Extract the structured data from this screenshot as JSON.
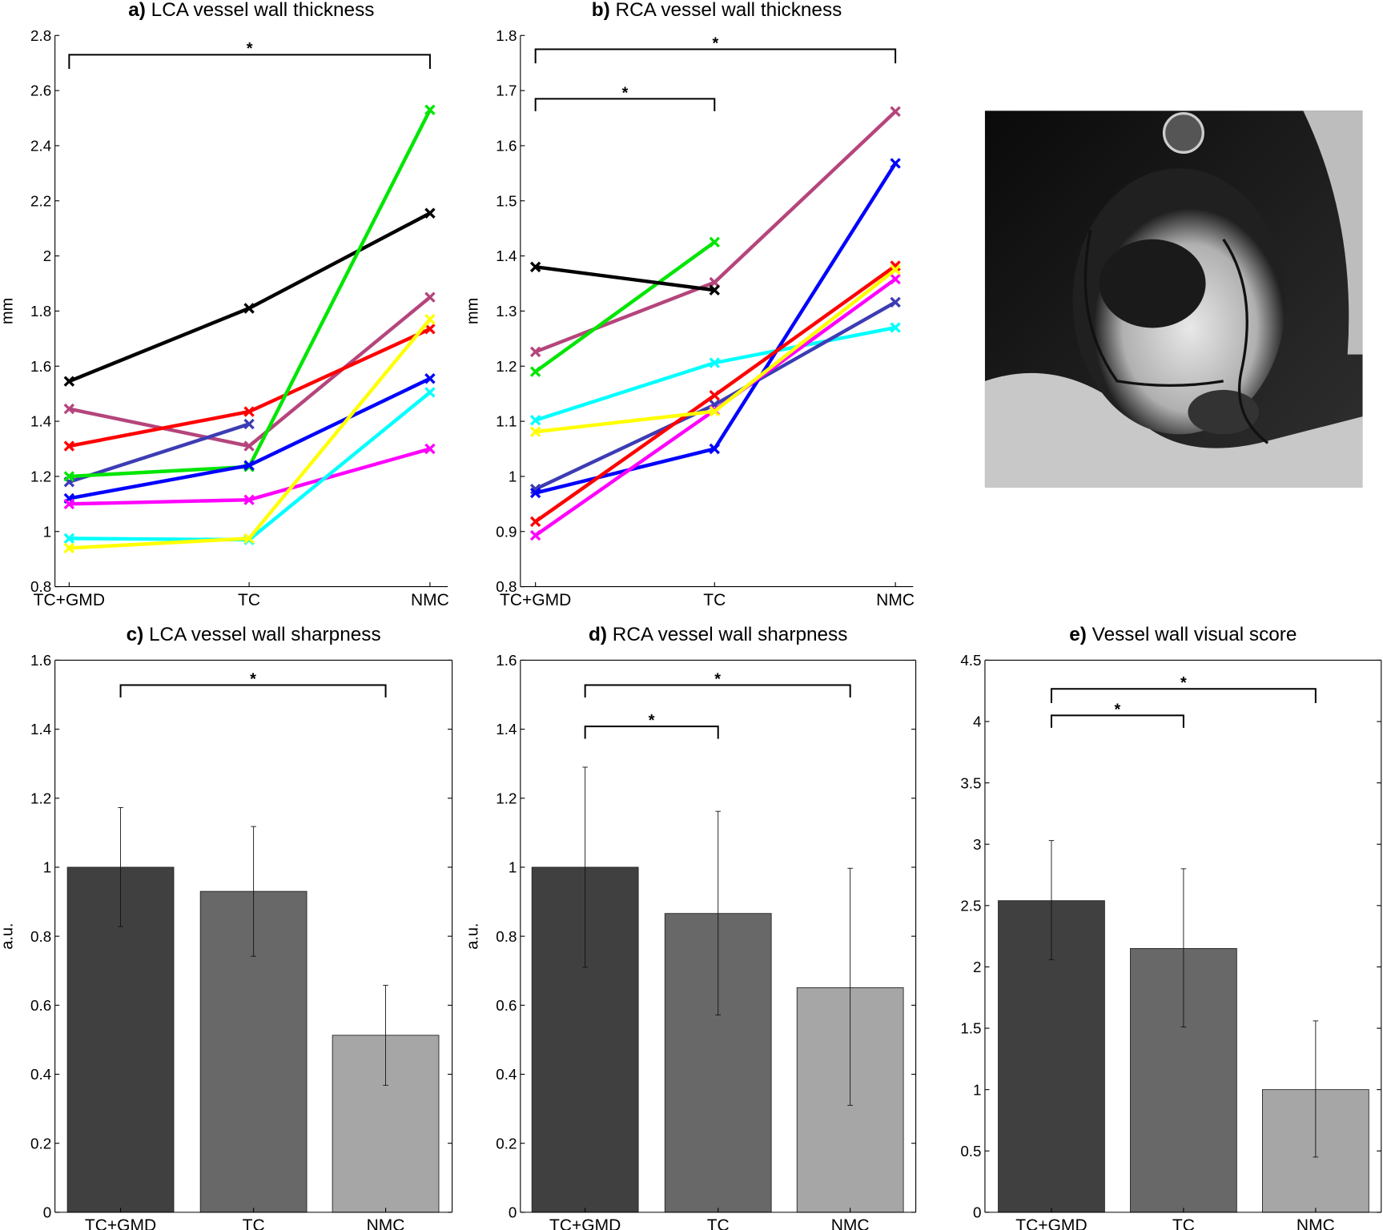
{
  "chart_data": [
    {
      "id": "a",
      "type": "line",
      "title_prefix": "a)",
      "title": "LCA vessel wall thickness",
      "ylabel": "mm",
      "xlabel": "",
      "categories": [
        "TC+GMD",
        "TC",
        "NMC"
      ],
      "ylim": [
        0.8,
        2.8
      ],
      "yticks": [
        0.8,
        1,
        1.2,
        1.4,
        1.6,
        1.8,
        2,
        2.2,
        2.4,
        2.6,
        2.8
      ],
      "ytick_labels": [
        "0.8",
        "1",
        "1.2",
        "1.4",
        "1.6",
        "1.8",
        "2",
        "2.2",
        "2.4",
        "2.6",
        "2.8"
      ],
      "series": [
        {
          "color": "#000000",
          "values": [
            1.545,
            1.81,
            2.155
          ]
        },
        {
          "color": "#b5457c",
          "values": [
            1.445,
            1.31,
            1.85
          ]
        },
        {
          "color": "#ff0000",
          "values": [
            1.31,
            1.435,
            1.735
          ]
        },
        {
          "color": "#3c3cb4",
          "values": [
            1.18,
            1.39,
            null
          ]
        },
        {
          "color": "#00e600",
          "values": [
            1.2,
            1.235,
            2.53
          ]
        },
        {
          "color": "#0000ff",
          "values": [
            1.12,
            1.24,
            1.555
          ]
        },
        {
          "color": "#ff00ff",
          "values": [
            1.1,
            1.115,
            1.3
          ]
        },
        {
          "color": "#00ffff",
          "values": [
            0.975,
            0.97,
            1.505
          ]
        },
        {
          "color": "#ffff00",
          "values": [
            0.94,
            0.975,
            1.77
          ]
        }
      ],
      "significance": [
        {
          "from": 0,
          "to": 2,
          "label": "*"
        }
      ]
    },
    {
      "id": "b",
      "type": "line",
      "title_prefix": "b)",
      "title": "RCA vessel wall thickness",
      "ylabel": "mm",
      "xlabel": "",
      "categories": [
        "TC+GMD",
        "TC",
        "NMC"
      ],
      "ylim": [
        0.8,
        1.8
      ],
      "yticks": [
        0.8,
        0.9,
        1,
        1.1,
        1.2,
        1.3,
        1.4,
        1.5,
        1.6,
        1.7,
        1.8
      ],
      "ytick_labels": [
        "0.8",
        "0.9",
        "1",
        "1.1",
        "1.2",
        "1.3",
        "1.4",
        "1.5",
        "1.6",
        "1.7",
        "1.8"
      ],
      "series": [
        {
          "color": "#b5457c",
          "values": [
            1.226,
            1.352,
            1.662
          ]
        },
        {
          "color": "#00ffff",
          "values": [
            1.102,
            1.206,
            1.27
          ]
        },
        {
          "color": "#3c3cb4",
          "values": [
            0.977,
            1.13,
            1.316
          ]
        },
        {
          "color": "#0000ff",
          "values": [
            0.97,
            1.05,
            1.568
          ]
        },
        {
          "color": "#ff00ff",
          "values": [
            0.893,
            1.12,
            1.358
          ]
        },
        {
          "color": "#ff0000",
          "values": [
            0.918,
            1.147,
            1.382
          ]
        },
        {
          "color": "#ffff00",
          "values": [
            1.081,
            1.118,
            1.375
          ]
        },
        {
          "color": "#00e600",
          "values": [
            1.19,
            1.425,
            null
          ]
        },
        {
          "color": "#000000",
          "values": [
            1.38,
            1.338,
            null
          ]
        }
      ],
      "significance": [
        {
          "from": 0,
          "to": 2,
          "label": "*"
        },
        {
          "from": 0,
          "to": 1,
          "label": "*"
        }
      ]
    },
    {
      "id": "c",
      "type": "bar",
      "title_prefix": "c)",
      "title": "LCA vessel wall sharpness",
      "ylabel": "a.u.",
      "xlabel": "",
      "categories": [
        "TC+GMD",
        "TC",
        "NMC"
      ],
      "values": [
        1.0,
        0.93,
        0.513
      ],
      "error_upper": [
        1.173,
        1.118,
        0.658
      ],
      "error_lower": [
        0.828,
        0.742,
        0.368
      ],
      "bar_colors": [
        "#404040",
        "#686868",
        "#a6a6a6"
      ],
      "ylim": [
        0,
        1.6
      ],
      "yticks": [
        0,
        0.2,
        0.4,
        0.6,
        0.8,
        1,
        1.2,
        1.4,
        1.6
      ],
      "ytick_labels": [
        "0",
        "0.2",
        "0.4",
        "0.6",
        "0.8",
        "1",
        "1.2",
        "1.4",
        "1.6"
      ],
      "significance": [
        {
          "from": 0,
          "to": 2,
          "label": "*"
        }
      ]
    },
    {
      "id": "d",
      "type": "bar",
      "title_prefix": "d)",
      "title": "RCA vessel wall sharpness",
      "ylabel": "a.u.",
      "xlabel": "",
      "categories": [
        "TC+GMD",
        "TC",
        "NMC"
      ],
      "values": [
        1.0,
        0.866,
        0.651
      ],
      "error_upper": [
        1.29,
        1.162,
        0.997
      ],
      "error_lower": [
        0.71,
        0.572,
        0.31
      ],
      "bar_colors": [
        "#404040",
        "#686868",
        "#a6a6a6"
      ],
      "ylim": [
        0,
        1.6
      ],
      "yticks": [
        0,
        0.2,
        0.4,
        0.6,
        0.8,
        1,
        1.2,
        1.4,
        1.6
      ],
      "ytick_labels": [
        "0",
        "0.2",
        "0.4",
        "0.6",
        "0.8",
        "1",
        "1.2",
        "1.4",
        "1.6"
      ],
      "significance": [
        {
          "from": 0,
          "to": 2,
          "label": "*"
        },
        {
          "from": 0,
          "to": 1,
          "label": "*"
        }
      ]
    },
    {
      "id": "e",
      "type": "bar",
      "title_prefix": "e)",
      "title": "Vessel wall visual score",
      "ylabel": "",
      "xlabel": "",
      "categories": [
        "TC+GMD",
        "TC",
        "NMC"
      ],
      "values": [
        2.54,
        2.15,
        1.0
      ],
      "error_upper": [
        3.03,
        2.8,
        1.56
      ],
      "error_lower": [
        2.06,
        1.51,
        0.45
      ],
      "bar_colors": [
        "#404040",
        "#686868",
        "#a6a6a6"
      ],
      "ylim": [
        0,
        4.5
      ],
      "yticks": [
        0,
        0.5,
        1,
        1.5,
        2,
        2.5,
        3,
        3.5,
        4,
        4.5
      ],
      "ytick_labels": [
        "0",
        "0.5",
        "1",
        "1.5",
        "2",
        "2.5",
        "3",
        "3.5",
        "4",
        "4.5"
      ],
      "significance": [
        {
          "from": 0,
          "to": 2,
          "label": "*"
        },
        {
          "from": 0,
          "to": 1,
          "label": "*"
        }
      ]
    }
  ]
}
